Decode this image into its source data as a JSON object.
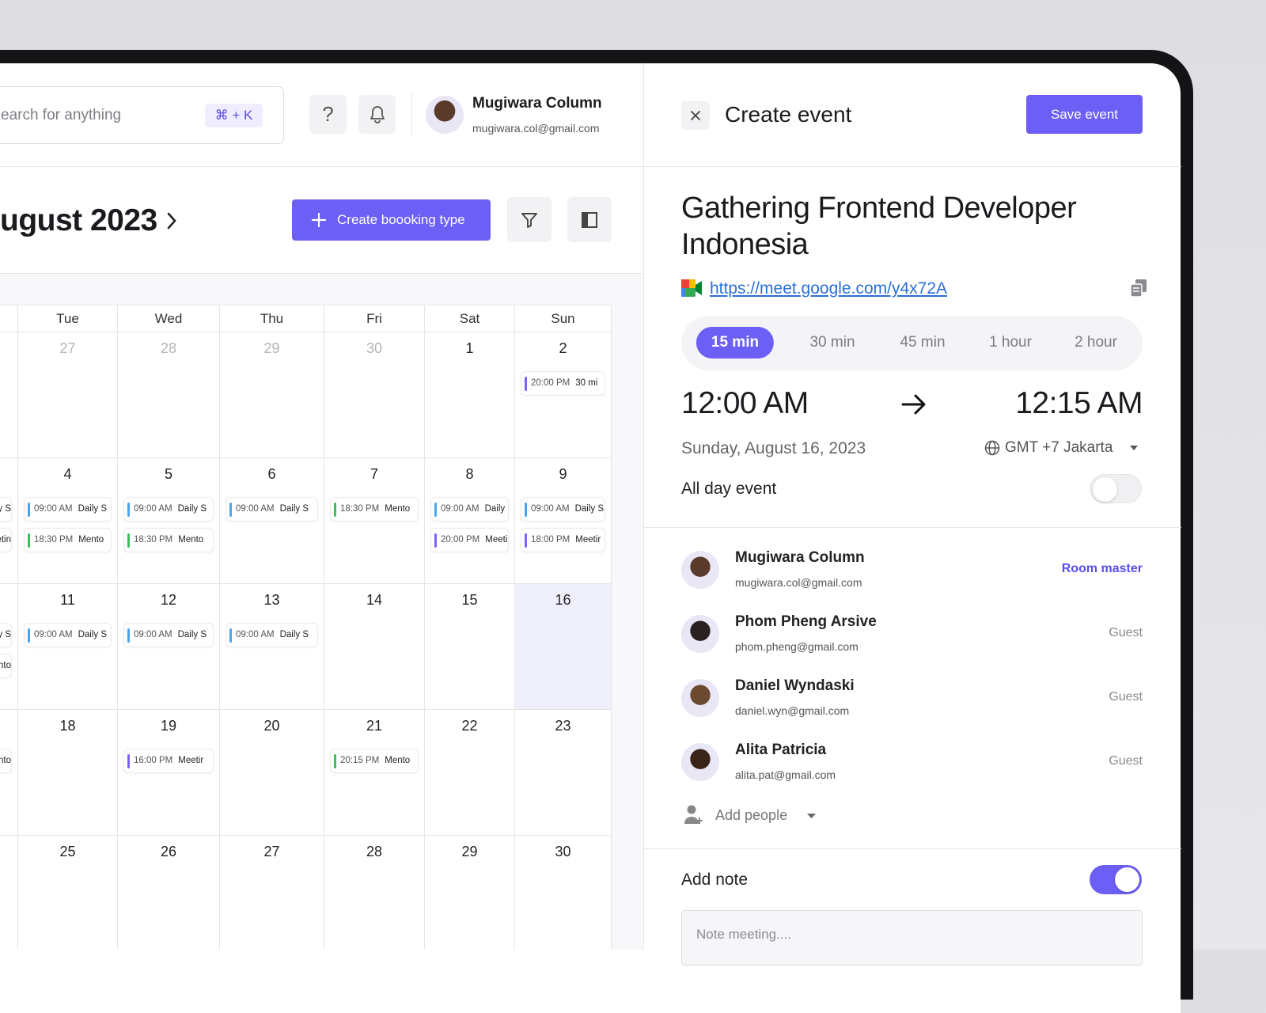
{
  "topbar": {
    "search_placeholder": "earch for anything",
    "shortcut": "⌘ + K",
    "help": "?",
    "user": {
      "name": "Mugiwara Column",
      "email": "mugiwara.col@gmail.com"
    }
  },
  "calendar": {
    "month_label": "ugust 2023",
    "create_button": "Create boooking type",
    "weekdays": [
      "Tue",
      "Wed",
      "Thu",
      "Fri",
      "Sat",
      "Sun"
    ],
    "clipped_column": [
      [],
      [
        "ly S",
        "etin"
      ],
      [
        "ly S",
        "nto"
      ],
      [
        "nto"
      ],
      []
    ],
    "weeks": [
      [
        {
          "date": "27",
          "muted": true,
          "events": []
        },
        {
          "date": "28",
          "muted": true,
          "events": []
        },
        {
          "date": "29",
          "muted": true,
          "events": []
        },
        {
          "date": "30",
          "muted": true,
          "events": []
        },
        {
          "date": "1",
          "events": []
        },
        {
          "date": "2",
          "events": [
            {
              "time": "20:00 PM",
              "title": "30 mi",
              "color": "#7b61ff"
            }
          ]
        }
      ],
      [
        {
          "date": "4",
          "events": [
            {
              "time": "09:00 AM",
              "title": "Daily S",
              "color": "#4aa3f0"
            },
            {
              "time": "18:30 PM",
              "title": "Mento",
              "color": "#3cc15a"
            }
          ]
        },
        {
          "date": "5",
          "events": [
            {
              "time": "09:00 AM",
              "title": "Daily S",
              "color": "#4aa3f0"
            },
            {
              "time": "18:30 PM",
              "title": "Mento",
              "color": "#3cc15a"
            }
          ]
        },
        {
          "date": "6",
          "events": [
            {
              "time": "09:00 AM",
              "title": "Daily S",
              "color": "#4aa3f0"
            }
          ]
        },
        {
          "date": "7",
          "events": [
            {
              "time": "18:30 PM",
              "title": "Mento",
              "color": "#3cc15a"
            }
          ]
        },
        {
          "date": "8",
          "events": [
            {
              "time": "09:00 AM",
              "title": "Daily",
              "color": "#4aa3f0"
            },
            {
              "time": "20:00 PM",
              "title": "Meeti",
              "color": "#7b61ff"
            }
          ]
        },
        {
          "date": "9",
          "events": [
            {
              "time": "09:00 AM",
              "title": "Daily S",
              "color": "#4aa3f0"
            },
            {
              "time": "18:00 PM",
              "title": "Meetir",
              "color": "#7b61ff"
            }
          ]
        }
      ],
      [
        {
          "date": "11",
          "events": [
            {
              "time": "09:00 AM",
              "title": "Daily S",
              "color": "#4aa3f0"
            }
          ]
        },
        {
          "date": "12",
          "events": [
            {
              "time": "09:00 AM",
              "title": "Daily S",
              "color": "#4aa3f0"
            }
          ]
        },
        {
          "date": "13",
          "events": [
            {
              "time": "09:00 AM",
              "title": "Daily S",
              "color": "#4aa3f0"
            }
          ]
        },
        {
          "date": "14",
          "events": []
        },
        {
          "date": "15",
          "events": []
        },
        {
          "date": "16",
          "selected": true,
          "events": []
        }
      ],
      [
        {
          "date": "18",
          "events": []
        },
        {
          "date": "19",
          "events": [
            {
              "time": "16:00 PM",
              "title": "Meetir",
              "color": "#7b61ff"
            }
          ]
        },
        {
          "date": "20",
          "events": []
        },
        {
          "date": "21",
          "events": [
            {
              "time": "20:15 PM",
              "title": "Mento",
              "color": "#3cc15a"
            }
          ]
        },
        {
          "date": "22",
          "events": []
        },
        {
          "date": "23",
          "events": []
        }
      ],
      [
        {
          "date": "25",
          "events": []
        },
        {
          "date": "26",
          "events": []
        },
        {
          "date": "27",
          "events": []
        },
        {
          "date": "28",
          "events": []
        },
        {
          "date": "29",
          "events": []
        },
        {
          "date": "30",
          "events": []
        }
      ]
    ]
  },
  "panel": {
    "header_title": "Create event",
    "save_button": "Save event",
    "event_title": "Gathering Frontend Developer Indonesia",
    "link": "https://meet.google.com/y4x72A",
    "durations": [
      {
        "label": "15 min",
        "selected": true
      },
      {
        "label": "30 min"
      },
      {
        "label": "45 min"
      },
      {
        "label": "1 hour"
      },
      {
        "label": "2 hour"
      }
    ],
    "start_time": "12:00 AM",
    "end_time": "12:15 AM",
    "date": "Sunday, August 16, 2023",
    "timezone": "GMT +7 Jakarta",
    "all_day": {
      "label": "All day event",
      "on": false
    },
    "people": [
      {
        "name": "Mugiwara Column",
        "email": "mugiwara.col@gmail.com",
        "role": "Room master",
        "host": true
      },
      {
        "name": "Phom Pheng Arsive",
        "email": "phom.pheng@gmail.com",
        "role": "Guest"
      },
      {
        "name": "Daniel Wyndaski",
        "email": "daniel.wyn@gmail.com",
        "role": "Guest"
      },
      {
        "name": "Alita Patricia",
        "email": "alita.pat@gmail.com",
        "role": "Guest"
      }
    ],
    "add_people": "Add people",
    "note": {
      "label": "Add note",
      "on": true,
      "placeholder": "Note meeting...."
    }
  }
}
